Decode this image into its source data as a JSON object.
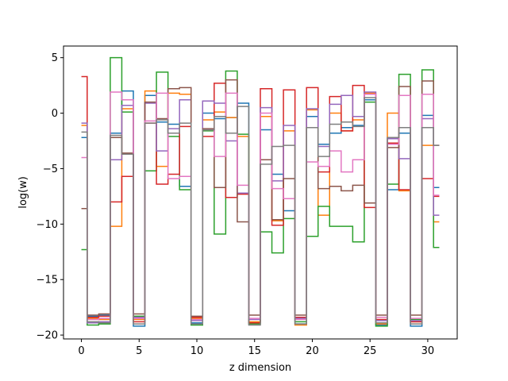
{
  "chart_data": {
    "type": "line",
    "step": "mid",
    "xlabel": "z dimension",
    "ylabel": "log(w)",
    "xlim": [
      -1.55,
      32.55
    ],
    "ylim": [
      -20.35,
      6.05
    ],
    "xticks": [
      0,
      5,
      10,
      15,
      20,
      25,
      30
    ],
    "yticks": [
      5,
      0,
      -5,
      -10,
      -15,
      -20
    ],
    "x": [
      0,
      1,
      2,
      3,
      4,
      5,
      6,
      7,
      8,
      9,
      10,
      11,
      12,
      13,
      14,
      15,
      16,
      17,
      18,
      19,
      20,
      21,
      22,
      23,
      24,
      25,
      26,
      27,
      28,
      29,
      30,
      31
    ],
    "series": [
      {
        "color": "#1f77b4",
        "values": [
          -2.2,
          -18.3,
          -18.2,
          -1.8,
          2.0,
          -19.2,
          1.6,
          -0.8,
          -1.0,
          -6.6,
          -18.9,
          0.0,
          -0.5,
          -0.4,
          0.9,
          -18.9,
          -1.5,
          -5.5,
          -8.8,
          -19.0,
          -0.3,
          -2.8,
          -1.8,
          -1.3,
          -1.1,
          1.2,
          -19.1,
          -6.9,
          -1.8,
          -19.2,
          -0.2,
          -6.7
        ]
      },
      {
        "color": "#ff7f0e",
        "values": [
          -1.1,
          -18.5,
          -18.6,
          -10.2,
          0.4,
          -18.6,
          2.0,
          -4.8,
          1.8,
          1.7,
          -18.5,
          -0.6,
          0.1,
          -0.4,
          -2.1,
          -18.8,
          -0.3,
          -9.7,
          -1.6,
          -19.1,
          0.3,
          -9.2,
          0.0,
          -1.6,
          -0.6,
          1.8,
          -19.0,
          0.0,
          -7.0,
          -18.8,
          -2.9,
          -9.8
        ]
      },
      {
        "color": "#2ca02c",
        "values": [
          -12.3,
          -19.1,
          -19.0,
          5.0,
          0.1,
          -18.3,
          -5.2,
          3.7,
          -2.1,
          -6.9,
          -19.1,
          -1.6,
          -10.9,
          3.8,
          -1.9,
          -19.0,
          -10.7,
          -12.6,
          -9.5,
          -18.8,
          -11.1,
          -8.4,
          -10.2,
          -10.2,
          -11.6,
          1.0,
          -19.2,
          -6.4,
          3.5,
          -18.6,
          3.9,
          -12.1
        ]
      },
      {
        "color": "#d62728",
        "values": [
          3.3,
          -18.4,
          -18.3,
          -8.0,
          -5.7,
          -18.8,
          -0.9,
          -6.4,
          -5.5,
          -1.2,
          -18.4,
          -2.1,
          2.7,
          -7.6,
          -7.3,
          -18.9,
          2.2,
          -10.1,
          2.1,
          -18.4,
          2.3,
          -5.3,
          1.5,
          -1.6,
          2.5,
          -8.5,
          -18.6,
          -2.7,
          -6.9,
          -18.8,
          -5.9,
          -7.5
        ]
      },
      {
        "color": "#9467bd",
        "values": [
          -0.9,
          -18.9,
          -18.8,
          -4.2,
          0.7,
          -18.4,
          0.9,
          -3.4,
          -1.4,
          1.2,
          -18.7,
          1.1,
          0.9,
          -2.5,
          -7.2,
          -18.6,
          0.5,
          -6.1,
          -1.1,
          -18.5,
          0.4,
          -3.0,
          0.8,
          1.6,
          -0.3,
          1.9,
          -18.7,
          -2.3,
          -4.1,
          -18.7,
          -0.5,
          -9.2
        ]
      },
      {
        "color": "#8c564b",
        "values": [
          -8.6,
          -18.2,
          -18.1,
          -2.2,
          -3.6,
          -18.1,
          1.0,
          -0.5,
          2.2,
          2.3,
          -18.3,
          -1.4,
          -6.7,
          3.0,
          -9.8,
          -18.2,
          -4.2,
          -9.6,
          -5.9,
          -18.2,
          -1.3,
          -6.8,
          -6.6,
          -7.0,
          -6.5,
          -8.1,
          -18.2,
          -3.1,
          2.4,
          -18.2,
          2.9,
          -2.9
        ]
      },
      {
        "color": "#e377c2",
        "values": [
          -4.0,
          -18.6,
          -18.5,
          1.9,
          1.2,
          -18.5,
          -0.7,
          1.8,
          -5.9,
          -5.7,
          -18.6,
          -1.5,
          -3.9,
          1.8,
          -6.5,
          -18.5,
          0.0,
          -6.8,
          -7.7,
          -18.6,
          -4.4,
          -4.8,
          -3.4,
          -5.3,
          -4.2,
          1.7,
          -18.4,
          -2.8,
          1.6,
          -18.5,
          1.7,
          -7.4
        ]
      },
      {
        "color": "#7f7f7f",
        "values": [
          -1.7,
          -18.8,
          -18.9,
          -2.0,
          -3.7,
          -19.0,
          -0.9,
          -0.6,
          -1.8,
          -0.9,
          -19.0,
          -1.5,
          -0.3,
          -1.8,
          0.6,
          -19.1,
          -4.6,
          -3.0,
          -2.9,
          -19.0,
          -1.3,
          -3.9,
          -1.0,
          -0.8,
          -1.2,
          1.4,
          -18.9,
          -2.2,
          -1.3,
          -19.0,
          -1.3,
          -2.9
        ]
      }
    ]
  }
}
